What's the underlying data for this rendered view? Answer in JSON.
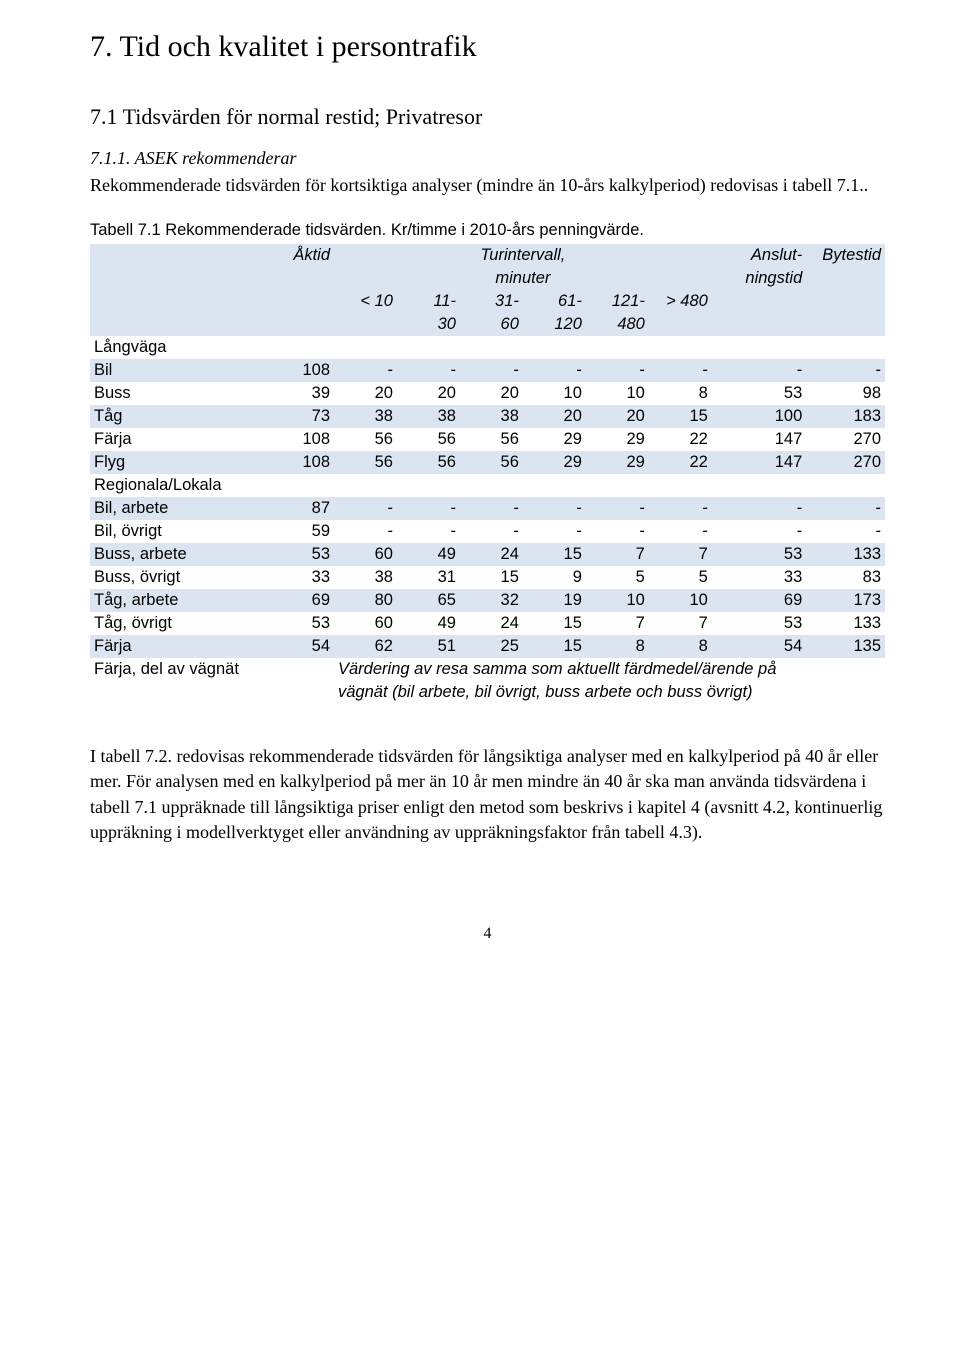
{
  "h1": "7. Tid och kvalitet i persontrafik",
  "h2": "7.1   Tidsvärden för normal restid; Privatresor",
  "sub_italic": "7.1.1.  ASEK rekommenderar",
  "intro_para": "Rekommenderade tidsvärden för kortsiktiga analyser (mindre än 10-års kalkylperiod) redovisas i tabell 7.1..",
  "table_caption": "Tabell 7.1 Rekommenderade tidsvärden. Kr/timme i 2010-års penningvärde.",
  "headers": {
    "aktid": "Åktid",
    "tur": "Turintervall,",
    "tur2": "minuter",
    "anslut": "Anslut-",
    "anslut2": "ningstid",
    "bytes": "Bytestid",
    "c1": "< 10",
    "c2a": "11-",
    "c2b": "30",
    "c3a": "31-",
    "c3b": "60",
    "c4a": "61-",
    "c4b": "120",
    "c5a": "121-",
    "c5b": "480",
    "c6": "> 480"
  },
  "sections": {
    "lang": "Långväga",
    "reg": "Regionala/Lokala"
  },
  "rows": {
    "bil": {
      "label": "Bil",
      "ak": "108",
      "v": [
        "-",
        "-",
        "-",
        "-",
        "-",
        "-"
      ],
      "ans": "-",
      "byt": "-"
    },
    "buss": {
      "label": "Buss",
      "ak": "39",
      "v": [
        "20",
        "20",
        "20",
        "10",
        "10",
        "8"
      ],
      "ans": "53",
      "byt": "98"
    },
    "tag": {
      "label": "Tåg",
      "ak": "73",
      "v": [
        "38",
        "38",
        "38",
        "20",
        "20",
        "15"
      ],
      "ans": "100",
      "byt": "183"
    },
    "farja": {
      "label": "Färja",
      "ak": "108",
      "v": [
        "56",
        "56",
        "56",
        "29",
        "29",
        "22"
      ],
      "ans": "147",
      "byt": "270"
    },
    "flyg": {
      "label": "Flyg",
      "ak": "108",
      "v": [
        "56",
        "56",
        "56",
        "29",
        "29",
        "22"
      ],
      "ans": "147",
      "byt": "270"
    },
    "bilarb": {
      "label": "Bil, arbete",
      "ak": "87",
      "v": [
        "-",
        "-",
        "-",
        "-",
        "-",
        "-"
      ],
      "ans": "-",
      "byt": "-"
    },
    "bilovr": {
      "label": "Bil, övrigt",
      "ak": "59",
      "v": [
        "-",
        "-",
        "-",
        "-",
        "-",
        "-"
      ],
      "ans": "-",
      "byt": "-"
    },
    "bussarb": {
      "label": "Buss, arbete",
      "ak": "53",
      "v": [
        "60",
        "49",
        "24",
        "15",
        "7",
        "7"
      ],
      "ans": "53",
      "byt": "133"
    },
    "bussovr": {
      "label": "Buss, övrigt",
      "ak": "33",
      "v": [
        "38",
        "31",
        "15",
        "9",
        "5",
        "5"
      ],
      "ans": "33",
      "byt": "83"
    },
    "tagarb": {
      "label": "Tåg, arbete",
      "ak": "69",
      "v": [
        "80",
        "65",
        "32",
        "19",
        "10",
        "10"
      ],
      "ans": "69",
      "byt": "173"
    },
    "tagovr": {
      "label": "Tåg, övrigt",
      "ak": "53",
      "v": [
        "60",
        "49",
        "24",
        "15",
        "7",
        "7"
      ],
      "ans": "53",
      "byt": "133"
    },
    "farja2": {
      "label": "Färja",
      "ak": "54",
      "v": [
        "62",
        "51",
        "25",
        "15",
        "8",
        "8"
      ],
      "ans": "54",
      "byt": "135"
    }
  },
  "footrow": {
    "label": "Färja, del av vägnät",
    "text1": "Värdering av resa samma som aktuellt färdmedel/ärende på",
    "text2": "vägnät (bil arbete, bil övrigt, buss arbete och buss övrigt)"
  },
  "body_para": "I tabell 7.2. redovisas rekommenderade tidsvärden för långsiktiga analyser med en kalkylperiod på 40 år eller mer. För analysen med en kalkylperiod på mer än 10 år men mindre än 40 år ska man använda tidsvärdena i tabell 7.1 uppräknade till långsiktiga priser enligt den metod som beskrivs i kapitel 4 (avsnitt 4.2, kontinuerlig uppräkning i modellverktyget eller användning av uppräkningsfaktor från tabell 4.3).",
  "page_num": "4",
  "shade_color": "#dbe5f1"
}
